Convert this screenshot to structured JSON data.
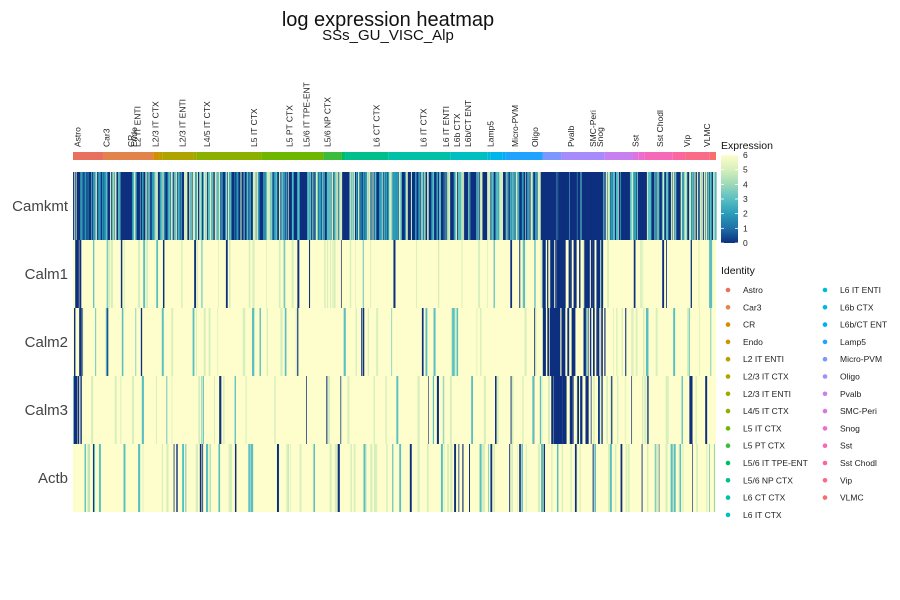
{
  "chart_data": {
    "type": "heatmap",
    "title": "log expression heatmap",
    "subtitle": "SSs_GU_VISC_Alp",
    "genes": [
      "Camkmt",
      "Calm1",
      "Calm2",
      "Calm3",
      "Actb"
    ],
    "identities": [
      {
        "name": "Astro",
        "color": "#E8705E",
        "proportion": 0.05
      },
      {
        "name": "Car3",
        "color": "#E2834B",
        "proportion": 0.08
      },
      {
        "name": "CR",
        "color": "#D48C00",
        "proportion": 0.005
      },
      {
        "name": "Endo",
        "color": "#C99400",
        "proportion": 0.005
      },
      {
        "name": "L2 IT ENTI",
        "color": "#BD9C00",
        "proportion": 0.005
      },
      {
        "name": "L2/3 IT CTX",
        "color": "#AFA300",
        "proportion": 0.05
      },
      {
        "name": "L2/3 IT ENTI",
        "color": "#9FAA00",
        "proportion": 0.005
      },
      {
        "name": "L4/5 IT CTX",
        "color": "#8BB000",
        "proportion": 0.105
      },
      {
        "name": "L5 IT CTX",
        "color": "#6FB600",
        "proportion": 0.1
      },
      {
        "name": "L5 PT CTX",
        "color": "#3DBB3A",
        "proportion": 0.03
      },
      {
        "name": "L5/6 IT TPE-ENT",
        "color": "#00BD67",
        "proportion": 0.005
      },
      {
        "name": "L5/6 NP CTX",
        "color": "#00BF8A",
        "proportion": 0.07
      },
      {
        "name": "L6 CT CTX",
        "color": "#00C0A7",
        "proportion": 0.1
      },
      {
        "name": "L6 IT CTX",
        "color": "#00BFC1",
        "proportion": 0.06
      },
      {
        "name": "L6 IT ENTI",
        "color": "#00BBD7",
        "proportion": 0.005
      },
      {
        "name": "L6b CTX",
        "color": "#00B5EA",
        "proportion": 0.02
      },
      {
        "name": "L6b/CT ENT",
        "color": "#00ADF9",
        "proportion": 0.005
      },
      {
        "name": "Lamp5",
        "color": "#1FA3FF",
        "proportion": 0.06
      },
      {
        "name": "Micro-PVM",
        "color": "#7D97FF",
        "proportion": 0.03
      },
      {
        "name": "Oligo",
        "color": "#A78BFC",
        "proportion": 0.07
      },
      {
        "name": "Pvalb",
        "color": "#C680F0",
        "proportion": 0.045
      },
      {
        "name": "SMC-Peri",
        "color": "#DD75E1",
        "proportion": 0.01
      },
      {
        "name": "Snog",
        "color": "#EC6DCF",
        "proportion": 0.01
      },
      {
        "name": "Sst",
        "color": "#F569B8",
        "proportion": 0.045
      },
      {
        "name": "Sst Chodl",
        "color": "#FA689F",
        "proportion": 0.02
      },
      {
        "name": "Vip",
        "color": "#F96B86",
        "proportion": 0.04
      },
      {
        "name": "VLMC",
        "color": "#F76F6C",
        "proportion": 0.01
      }
    ],
    "column_labels": [
      {
        "text": "Astro",
        "at": 0.01
      },
      {
        "text": "Car3",
        "at": 0.075
      },
      {
        "text": "CR",
        "at": 0.13
      },
      {
        "text": "Endo",
        "at": 0.137
      },
      {
        "text": "L2 IT ENTI",
        "at": 0.144
      },
      {
        "text": "L2/3 IT CTX",
        "at": 0.185
      },
      {
        "text": "L2/3 IT ENTI",
        "at": 0.245
      },
      {
        "text": "L4/5 IT CTX",
        "at": 0.3
      },
      {
        "text": "L5 IT CTX",
        "at": 0.405
      },
      {
        "text": "L5 PT CTX",
        "at": 0.485
      },
      {
        "text": "L5/6 IT TPE-ENT",
        "at": 0.523
      },
      {
        "text": "L5/6 NP CTX",
        "at": 0.57
      },
      {
        "text": "L6 CT CTX",
        "at": 0.68
      },
      {
        "text": "L6 IT CTX",
        "at": 0.785
      },
      {
        "text": "L6 IT ENTI",
        "at": 0.835
      },
      {
        "text": "L6b CTX",
        "at": 0.86
      },
      {
        "text": "L6b/CT ENT",
        "at": 0.885
      },
      {
        "text": "Lamp5",
        "at": 0.935
      },
      {
        "text": "Micro-PVM",
        "at": 0.99
      },
      {
        "text": "Oligo",
        "at": 1.035
      },
      {
        "text": "Pvalb",
        "at": 1.115
      },
      {
        "text": "SMC-Peri",
        "at": 1.165
      },
      {
        "text": "Snog",
        "at": 1.18
      },
      {
        "text": "Sst",
        "at": 1.26
      },
      {
        "text": "Sst Chodl",
        "at": 1.315
      },
      {
        "text": "Vip",
        "at": 1.375
      },
      {
        "text": "VLMC",
        "at": 1.42
      }
    ],
    "color_scale": {
      "title": "Expression",
      "min": 0,
      "max": 6,
      "ticks": [
        0,
        1,
        2,
        3,
        4,
        5,
        6
      ],
      "colors": [
        "#0D2F7E",
        "#1F6FA8",
        "#2A9BB9",
        "#59BFC2",
        "#9ED9B9",
        "#D6EFBC",
        "#FDFECB"
      ]
    },
    "legend": {
      "title": "Identity"
    }
  }
}
